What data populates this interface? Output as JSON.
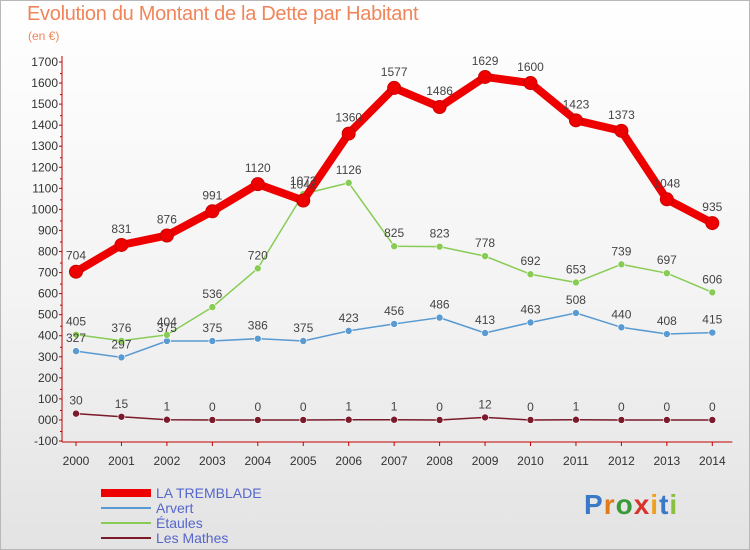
{
  "title": "Evolution du Montant de la Dette par Habitant",
  "subtitle": "(en €)",
  "logo": {
    "text": "Proxiti",
    "colors": [
      "#3a78c8",
      "#e07a1a",
      "#3a9a3a",
      "#d8342c",
      "#f0a020",
      "#3a78c8",
      "#8ac040"
    ]
  },
  "colors": {
    "title": "#f0855a",
    "axis": "#c00000"
  },
  "chart_data": {
    "type": "line",
    "title": "Evolution du Montant de la Dette par Habitant",
    "subtitle": "(en €)",
    "x": [
      "2000",
      "2001",
      "2002",
      "2003",
      "2004",
      "2005",
      "2006",
      "2007",
      "2008",
      "2009",
      "2010",
      "2011",
      "2012",
      "2013",
      "2014"
    ],
    "ylim": [
      -100,
      1700
    ],
    "yticks": [
      "-100",
      "000",
      "100",
      "200",
      "300",
      "400",
      "500",
      "600",
      "700",
      "800",
      "900",
      "1000",
      "1100",
      "1200",
      "1300",
      "1400",
      "1500",
      "1600",
      "1700"
    ],
    "grid": false,
    "legend_position": "bottom-left",
    "series": [
      {
        "name": "LA TREMBLADE",
        "color": "#ee0000",
        "values": [
          704,
          831,
          876,
          991,
          1120,
          1042,
          1360,
          1577,
          1486,
          1629,
          1600,
          1423,
          1373,
          1048,
          935
        ],
        "labels": [
          "704",
          "831",
          "876",
          "991",
          "1120",
          "1042",
          "1360",
          "1577",
          "1486",
          "1629",
          "1600",
          "1423",
          "1373",
          "1048",
          "935"
        ]
      },
      {
        "name": "Arvert",
        "color": "#5a9ad2",
        "values": [
          327,
          297,
          375,
          375,
          386,
          375,
          423,
          456,
          486,
          413,
          463,
          508,
          440,
          408,
          415
        ],
        "labels": [
          "327",
          "297",
          "375",
          "375",
          "386",
          "375",
          "423",
          "456",
          "486",
          "413",
          "463",
          "508",
          "440",
          "408",
          "415"
        ]
      },
      {
        "name": "Étaules",
        "color": "#88cc55",
        "values": [
          405,
          376,
          404,
          536,
          720,
          1073,
          1126,
          825,
          823,
          778,
          692,
          653,
          739,
          697,
          606
        ],
        "labels": [
          "405",
          "376",
          "404",
          "536",
          "720",
          "1073",
          "1126",
          "825",
          "823",
          "778",
          "692",
          "653",
          "739",
          "697",
          "606"
        ]
      },
      {
        "name": "Les Mathes",
        "color": "#7a1a2a",
        "values": [
          30,
          15,
          1,
          0,
          0,
          0,
          1,
          1,
          0,
          12,
          0,
          1,
          0,
          0,
          0
        ],
        "labels": [
          "30",
          "15",
          "1",
          "0",
          "0",
          "0",
          "1",
          "1",
          "0",
          "12",
          "0",
          "1",
          "0",
          "0",
          "0"
        ]
      }
    ]
  }
}
